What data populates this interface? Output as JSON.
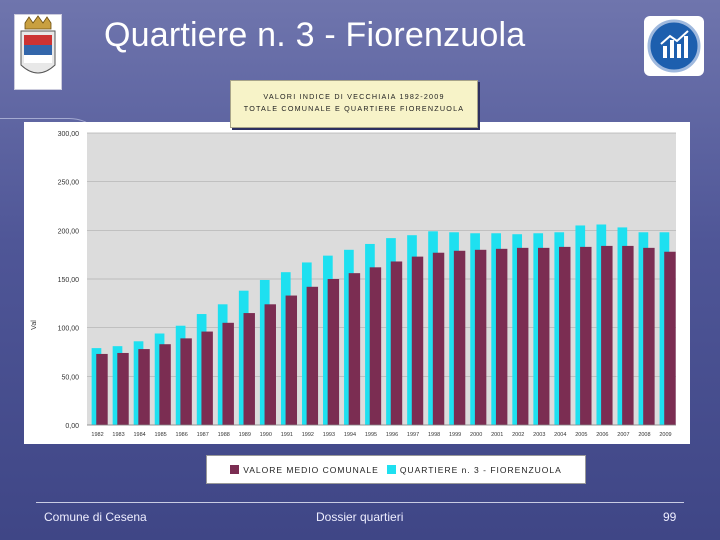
{
  "slide": {
    "title": "Quartiere n. 3 - Fiorenzuola",
    "footer_left": "Comune di Cesena",
    "footer_center": "Dossier quartieri",
    "page_number": "99"
  },
  "chart_data": {
    "type": "bar",
    "title_line1": "VALORI INDICE DI VECCHIAIA 1982-2009",
    "title_line2": "TOTALE COMUNALE E QUARTIERE FIORENZUOLA",
    "ylabel": "Val",
    "ylim": [
      0,
      300
    ],
    "y_ticks": [
      "0,00",
      "50,00",
      "100,00",
      "150,00",
      "200,00",
      "250,00",
      "300,00"
    ],
    "categories": [
      "1982",
      "1983",
      "1984",
      "1985",
      "1986",
      "1987",
      "1988",
      "1989",
      "1990",
      "1991",
      "1992",
      "1993",
      "1994",
      "1995",
      "1996",
      "1997",
      "1998",
      "1999",
      "2000",
      "2001",
      "2002",
      "2003",
      "2004",
      "2005",
      "2006",
      "2007",
      "2008",
      "2009"
    ],
    "series": [
      {
        "name": "VALORE MEDIO COMUNALE",
        "color": "#7b2d52",
        "values": [
          73,
          74,
          78,
          83,
          89,
          96,
          105,
          115,
          124,
          133,
          142,
          150,
          156,
          162,
          168,
          173,
          177,
          179,
          180,
          181,
          182,
          182,
          183,
          183,
          184,
          184,
          182,
          178
        ]
      },
      {
        "name": "QUARTIERE n. 3 - FIORENZUOLA",
        "color": "#1ee0f0",
        "values": [
          79,
          81,
          86,
          94,
          102,
          114,
          124,
          138,
          149,
          157,
          167,
          174,
          180,
          186,
          192,
          195,
          199,
          198,
          197,
          197,
          196,
          197,
          198,
          205,
          206,
          203,
          198,
          198
        ]
      }
    ],
    "grid": true,
    "legend": "bottom"
  },
  "colors": {
    "plot_bg": "#dcdcdc",
    "chart_frame": "#ffffff",
    "grid": "#b0b0b0"
  },
  "icons": {
    "left": "crest-icon",
    "right": "chart-logo-icon"
  }
}
